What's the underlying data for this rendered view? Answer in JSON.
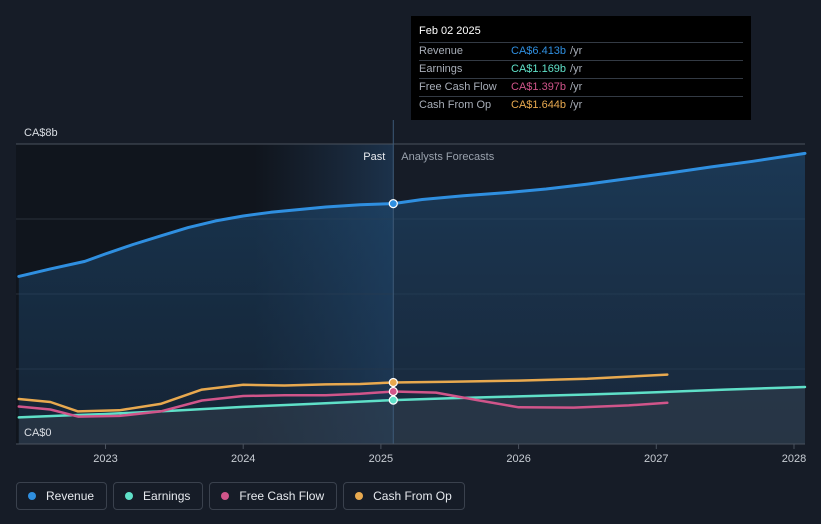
{
  "tooltip": {
    "date": "Feb 02 2025",
    "rows": [
      {
        "label": "Revenue",
        "value": "CA$6.413b",
        "unit": "/yr",
        "color": "#2f8fe0"
      },
      {
        "label": "Earnings",
        "value": "CA$1.169b",
        "unit": "/yr",
        "color": "#5fe0c8"
      },
      {
        "label": "Free Cash Flow",
        "value": "CA$1.397b",
        "unit": "/yr",
        "color": "#d0558a"
      },
      {
        "label": "Cash From Op",
        "value": "CA$1.644b",
        "unit": "/yr",
        "color": "#e8a94f"
      }
    ]
  },
  "chart_data": {
    "type": "line",
    "y_top_label": "CA$8b",
    "y_bottom_label": "CA$0",
    "past_label": "Past",
    "forecast_label": "Analysts Forecasts",
    "x_ticks": [
      "2023",
      "2024",
      "2025",
      "2026",
      "2027",
      "2028"
    ],
    "xlim": [
      2022.35,
      2028.08
    ],
    "ylim": [
      0,
      8
    ],
    "divider_x": 2025.09,
    "grid": true,
    "series": [
      {
        "name": "Revenue",
        "color": "#2f8fe0",
        "area": true,
        "x": [
          2022.37,
          2022.6,
          2022.85,
          2023.0,
          2023.2,
          2023.4,
          2023.6,
          2023.8,
          2024.0,
          2024.2,
          2024.4,
          2024.6,
          2024.85,
          2025.09,
          2025.3,
          2025.6,
          2025.9,
          2026.2,
          2026.5,
          2026.8,
          2027.1,
          2027.4,
          2027.7,
          2028.08
        ],
        "y": [
          4.47,
          4.67,
          4.87,
          5.07,
          5.32,
          5.55,
          5.77,
          5.95,
          6.08,
          6.18,
          6.25,
          6.32,
          6.38,
          6.41,
          6.52,
          6.62,
          6.7,
          6.8,
          6.93,
          7.08,
          7.23,
          7.39,
          7.54,
          7.75
        ]
      },
      {
        "name": "Earnings",
        "color": "#5fe0c8",
        "area": false,
        "x": [
          2022.37,
          2022.7,
          2023.0,
          2023.5,
          2024.0,
          2024.5,
          2025.09,
          2025.5,
          2026.0,
          2026.5,
          2027.0,
          2027.5,
          2028.08
        ],
        "y": [
          0.71,
          0.76,
          0.8,
          0.89,
          0.99,
          1.07,
          1.17,
          1.22,
          1.27,
          1.32,
          1.38,
          1.45,
          1.52
        ]
      },
      {
        "name": "Free Cash Flow",
        "color": "#d0558a",
        "area": false,
        "x": [
          2022.37,
          2022.6,
          2022.8,
          2023.1,
          2023.4,
          2023.7,
          2024.0,
          2024.3,
          2024.6,
          2024.85,
          2025.09,
          2025.4,
          2025.7,
          2026.0,
          2026.4,
          2026.8,
          2027.08
        ],
        "y": [
          1.0,
          0.92,
          0.73,
          0.75,
          0.87,
          1.16,
          1.28,
          1.3,
          1.3,
          1.34,
          1.4,
          1.37,
          1.17,
          0.98,
          0.97,
          1.03,
          1.1
        ]
      },
      {
        "name": "Cash From Op",
        "color": "#e8a94f",
        "area": false,
        "x": [
          2022.37,
          2022.6,
          2022.8,
          2023.1,
          2023.4,
          2023.7,
          2024.0,
          2024.3,
          2024.6,
          2024.85,
          2025.09,
          2025.5,
          2026.0,
          2026.5,
          2027.08
        ],
        "y": [
          1.2,
          1.12,
          0.87,
          0.9,
          1.07,
          1.45,
          1.58,
          1.56,
          1.59,
          1.6,
          1.64,
          1.66,
          1.69,
          1.74,
          1.85
        ]
      }
    ]
  },
  "legend": [
    {
      "label": "Revenue",
      "color": "#2f8fe0"
    },
    {
      "label": "Earnings",
      "color": "#5fe0c8"
    },
    {
      "label": "Free Cash Flow",
      "color": "#d0558a"
    },
    {
      "label": "Cash From Op",
      "color": "#e8a94f"
    }
  ]
}
